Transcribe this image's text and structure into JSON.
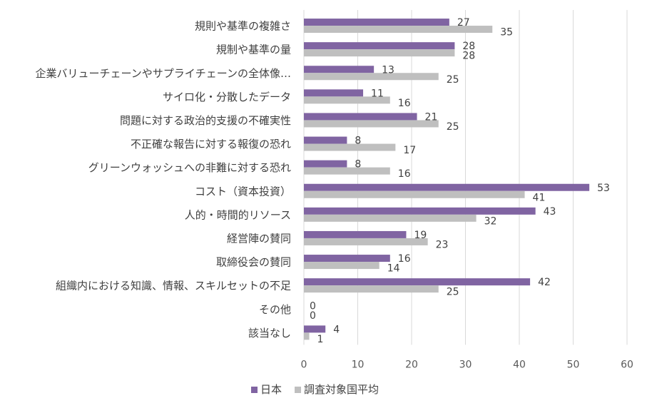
{
  "chart_data": {
    "type": "bar",
    "orientation": "horizontal",
    "categories": [
      "規則や基準の複雑さ",
      "規制や基準の量",
      "企業バリューチェーンやサプライチェーンの全体像…",
      "サイロ化・分散したデータ",
      "問題に対する政治的支援の不確実性",
      "不正確な報告に対する報復の恐れ",
      "グリーンウォッシュへの非難に対する恐れ",
      "コスト（資本投資）",
      "人的・時間的リソース",
      "経営陣の賛同",
      "取締役会の賛同",
      "組織内における知識、情報、スキルセットの不足",
      "その他",
      "該当なし"
    ],
    "series": [
      {
        "name": "日本",
        "color": "#8064a2",
        "values": [
          27,
          28,
          13,
          11,
          21,
          8,
          8,
          53,
          43,
          19,
          16,
          42,
          0,
          4
        ]
      },
      {
        "name": "調査対象国平均",
        "color": "#bfbfbf",
        "values": [
          35,
          28,
          25,
          16,
          25,
          17,
          16,
          41,
          32,
          23,
          14,
          25,
          0,
          1
        ]
      }
    ],
    "xlim": [
      0,
      60
    ],
    "xticks": [
      "0",
      "10",
      "20",
      "30",
      "40",
      "50",
      "60"
    ],
    "grid": true,
    "legend_position": "bottom",
    "title": "",
    "xlabel": "",
    "ylabel": ""
  }
}
